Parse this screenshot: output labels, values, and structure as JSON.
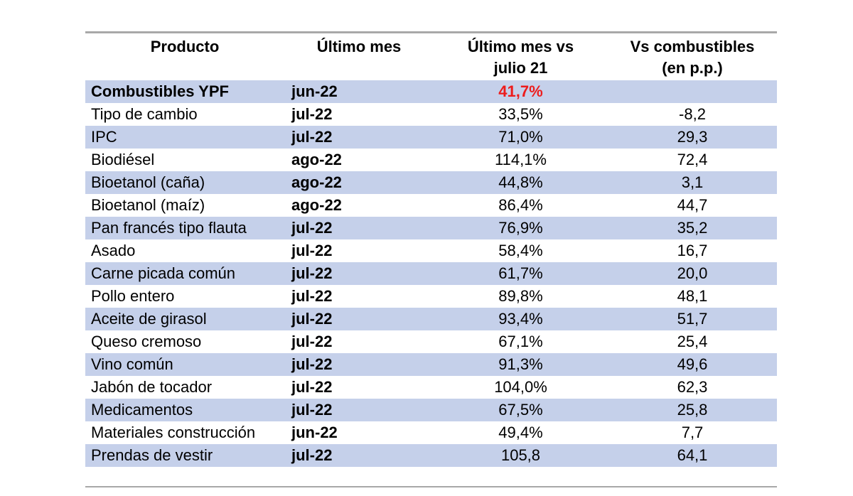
{
  "colors": {
    "row_band_blue": "#c5d0ea",
    "rule_gray": "#a8a8a8",
    "highlight_red": "#ed1c1c",
    "text": "#000000",
    "background": "#ffffff"
  },
  "table": {
    "headers": {
      "producto": "Producto",
      "ultimo_mes": "Último mes",
      "ultimo_mes_vs": "Último mes vs\njulio 21",
      "vs_combustibles": "Vs combustibles\n(en p.p.)"
    },
    "rows": [
      {
        "producto": "Combustibles YPF",
        "ultimo_mes": "jun-22",
        "variacion": "41,7%",
        "vs_combustibles": ""
      },
      {
        "producto": "Tipo de cambio",
        "ultimo_mes": "jul-22",
        "variacion": "33,5%",
        "vs_combustibles": "-8,2"
      },
      {
        "producto": "IPC",
        "ultimo_mes": "jul-22",
        "variacion": "71,0%",
        "vs_combustibles": "29,3"
      },
      {
        "producto": "Biodiésel",
        "ultimo_mes": "ago-22",
        "variacion": "114,1%",
        "vs_combustibles": "72,4"
      },
      {
        "producto": "Bioetanol (caña)",
        "ultimo_mes": "ago-22",
        "variacion": "44,8%",
        "vs_combustibles": "3,1"
      },
      {
        "producto": "Bioetanol (maíz)",
        "ultimo_mes": "ago-22",
        "variacion": "86,4%",
        "vs_combustibles": "44,7"
      },
      {
        "producto": "Pan francés tipo flauta",
        "ultimo_mes": "jul-22",
        "variacion": "76,9%",
        "vs_combustibles": "35,2"
      },
      {
        "producto": "Asado",
        "ultimo_mes": "jul-22",
        "variacion": "58,4%",
        "vs_combustibles": "16,7"
      },
      {
        "producto": "Carne picada común",
        "ultimo_mes": "jul-22",
        "variacion": "61,7%",
        "vs_combustibles": "20,0"
      },
      {
        "producto": "Pollo entero",
        "ultimo_mes": "jul-22",
        "variacion": "89,8%",
        "vs_combustibles": "48,1"
      },
      {
        "producto": "Aceite de girasol",
        "ultimo_mes": "jul-22",
        "variacion": "93,4%",
        "vs_combustibles": "51,7"
      },
      {
        "producto": "Queso cremoso",
        "ultimo_mes": "jul-22",
        "variacion": "67,1%",
        "vs_combustibles": "25,4"
      },
      {
        "producto": "Vino común",
        "ultimo_mes": "jul-22",
        "variacion": "91,3%",
        "vs_combustibles": "49,6"
      },
      {
        "producto": "Jabón de tocador",
        "ultimo_mes": "jul-22",
        "variacion": "104,0%",
        "vs_combustibles": "62,3"
      },
      {
        "producto": "Medicamentos",
        "ultimo_mes": "jul-22",
        "variacion": "67,5%",
        "vs_combustibles": "25,8"
      },
      {
        "producto": "Materiales construcción",
        "ultimo_mes": "jun-22",
        "variacion": "49,4%",
        "vs_combustibles": "7,7"
      },
      {
        "producto": "Prendas de vestir",
        "ultimo_mes": "jul-22",
        "variacion": "105,8",
        "vs_combustibles": "64,1"
      }
    ]
  },
  "chart_data": {
    "type": "table",
    "title": "",
    "columns": [
      "Producto",
      "Último mes",
      "Último mes vs julio 21",
      "Vs combustibles (en p.p.)"
    ],
    "rows": [
      [
        "Combustibles YPF",
        "jun-22",
        41.7,
        null
      ],
      [
        "Tipo de cambio",
        "jul-22",
        33.5,
        -8.2
      ],
      [
        "IPC",
        "jul-22",
        71.0,
        29.3
      ],
      [
        "Biodiésel",
        "ago-22",
        114.1,
        72.4
      ],
      [
        "Bioetanol (caña)",
        "ago-22",
        44.8,
        3.1
      ],
      [
        "Bioetanol (maíz)",
        "ago-22",
        86.4,
        44.7
      ],
      [
        "Pan francés tipo flauta",
        "jul-22",
        76.9,
        35.2
      ],
      [
        "Asado",
        "jul-22",
        58.4,
        16.7
      ],
      [
        "Carne picada común",
        "jul-22",
        61.7,
        20.0
      ],
      [
        "Pollo entero",
        "jul-22",
        89.8,
        48.1
      ],
      [
        "Aceite de girasol",
        "jul-22",
        93.4,
        51.7
      ],
      [
        "Queso cremoso",
        "jul-22",
        67.1,
        25.4
      ],
      [
        "Vino común",
        "jul-22",
        91.3,
        49.6
      ],
      [
        "Jabón de tocador",
        "jul-22",
        104.0,
        62.3
      ],
      [
        "Medicamentos",
        "jul-22",
        67.5,
        25.8
      ],
      [
        "Materiales construcción",
        "jun-22",
        49.4,
        7.7
      ],
      [
        "Prendas de vestir",
        "jul-22",
        105.8,
        64.1
      ]
    ],
    "notes": "First row (Combustibles YPF) highlighted: product bold, 41,7% in bold red; its p.p. cell is empty. Prendas de vestir value shown without % sign."
  }
}
